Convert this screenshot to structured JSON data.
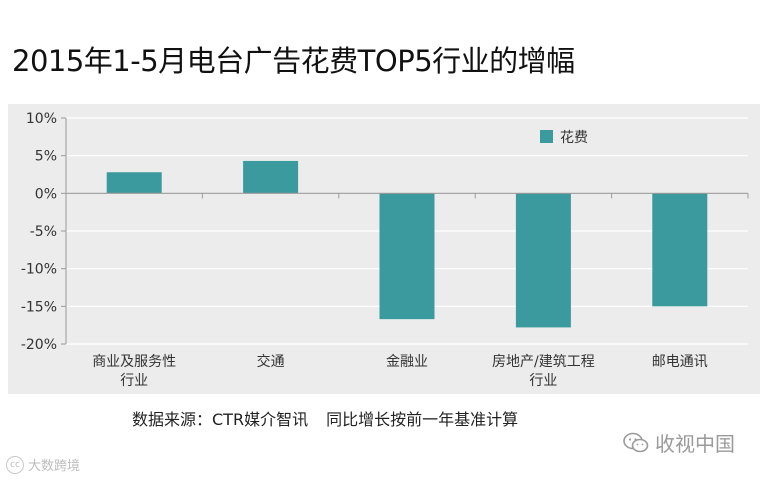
{
  "title": "2015年1-5月电台广告花费TOP5行业的增幅",
  "source": {
    "origin": "数据来源：CTR媒介智讯",
    "note": "同比增长按前一年基准计算"
  },
  "watermark_right": "收视中国",
  "watermark_left": "大数跨境",
  "colors": {
    "bar": "#3a9a9e",
    "panel": "#ececec",
    "grid": "#ffffff"
  },
  "chart_data": {
    "type": "bar",
    "categories": [
      [
        "商业及服务性",
        "行业"
      ],
      [
        "交通"
      ],
      [
        "金融业"
      ],
      [
        "房地产/建筑工程",
        "行业"
      ],
      [
        "邮电通讯"
      ]
    ],
    "series": [
      {
        "name": "花费",
        "values": [
          2.8,
          4.3,
          -16.7,
          -17.8,
          -15.0
        ]
      }
    ],
    "yticks": [
      "10%",
      "5%",
      "0%",
      "-5%",
      "-10%",
      "-15%",
      "-20%"
    ],
    "ytick_values": [
      10,
      5,
      0,
      -5,
      -10,
      -15,
      -20
    ],
    "ylim": [
      -20,
      10
    ],
    "grid": true,
    "legend_position": "top-right"
  }
}
